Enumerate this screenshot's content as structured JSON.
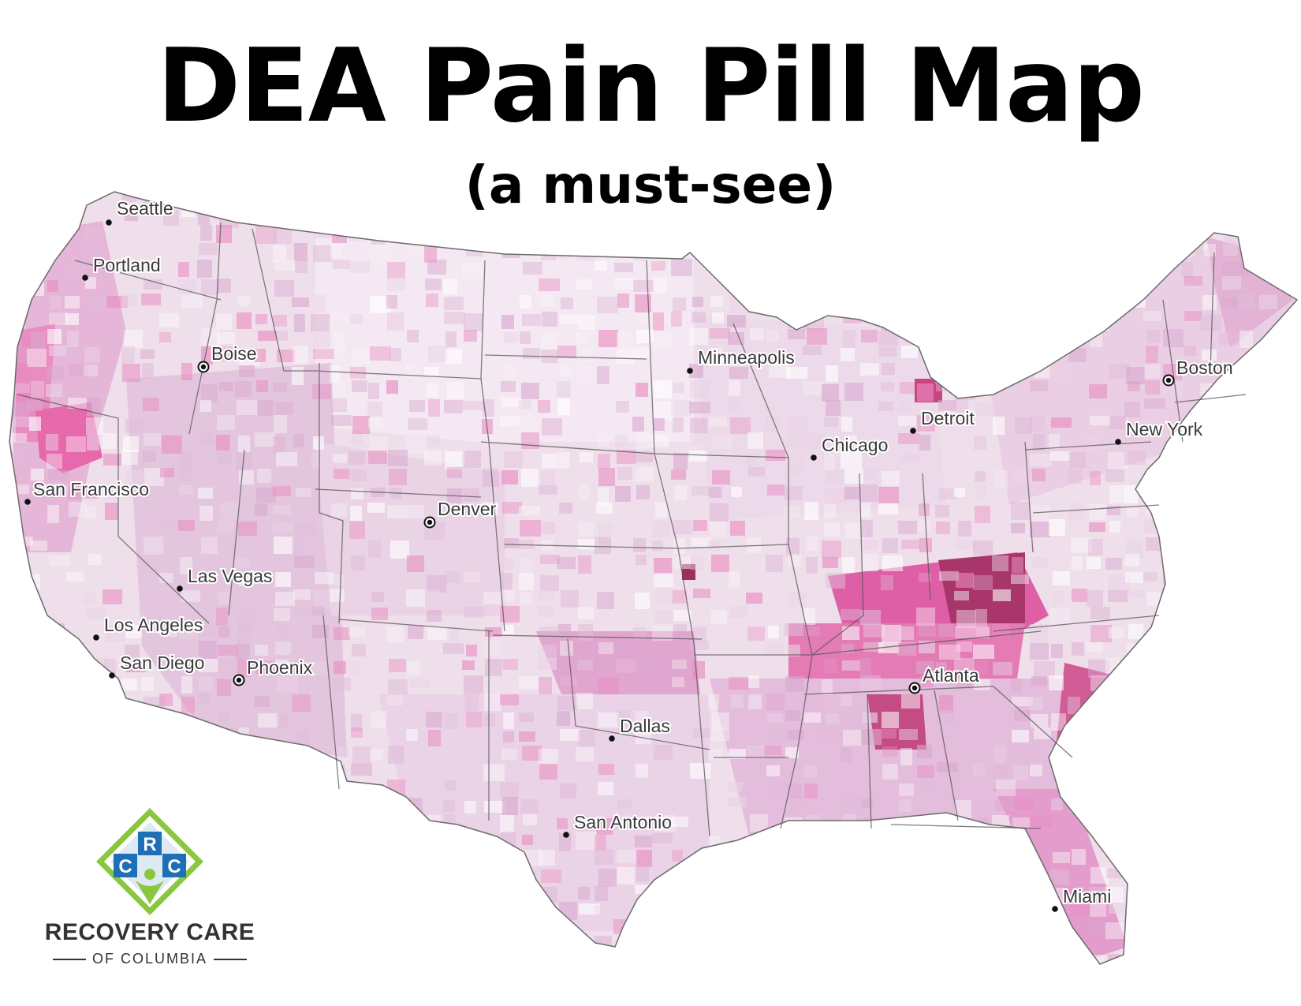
{
  "title": "DEA Pain Pill Map",
  "subtitle": "(a must-see)",
  "colors": {
    "lightest": "#f3e6f0",
    "light": "#e6cde0",
    "medium": "#dcaed3",
    "pink": "#e98cc0",
    "hot_pink": "#e8579e",
    "dark": "#9c2f5c",
    "border": "#555555"
  },
  "cities": [
    {
      "name": "Seattle",
      "marker": "dot"
    },
    {
      "name": "Portland",
      "marker": "dot"
    },
    {
      "name": "Boise",
      "marker": "capital"
    },
    {
      "name": "San Francisco",
      "marker": "dot"
    },
    {
      "name": "Las Vegas",
      "marker": "dot"
    },
    {
      "name": "Los Angeles",
      "marker": "dot"
    },
    {
      "name": "San Diego",
      "marker": "dot"
    },
    {
      "name": "Phoenix",
      "marker": "capital"
    },
    {
      "name": "Denver",
      "marker": "capital"
    },
    {
      "name": "Minneapolis",
      "marker": "dot"
    },
    {
      "name": "Chicago",
      "marker": "dot"
    },
    {
      "name": "Detroit",
      "marker": "dot"
    },
    {
      "name": "Boston",
      "marker": "capital"
    },
    {
      "name": "New York",
      "marker": "dot"
    },
    {
      "name": "Dallas",
      "marker": "dot"
    },
    {
      "name": "San Antonio",
      "marker": "dot"
    },
    {
      "name": "Atlanta",
      "marker": "capital"
    },
    {
      "name": "Miami",
      "marker": "dot"
    }
  ],
  "logo": {
    "letters": [
      "R",
      "C",
      "C"
    ],
    "name": "RECOVERY CARE",
    "sub": "OF COLUMBIA",
    "colors": {
      "green": "#8cc63f",
      "blue": "#1e6fb5",
      "white": "#ffffff"
    }
  }
}
